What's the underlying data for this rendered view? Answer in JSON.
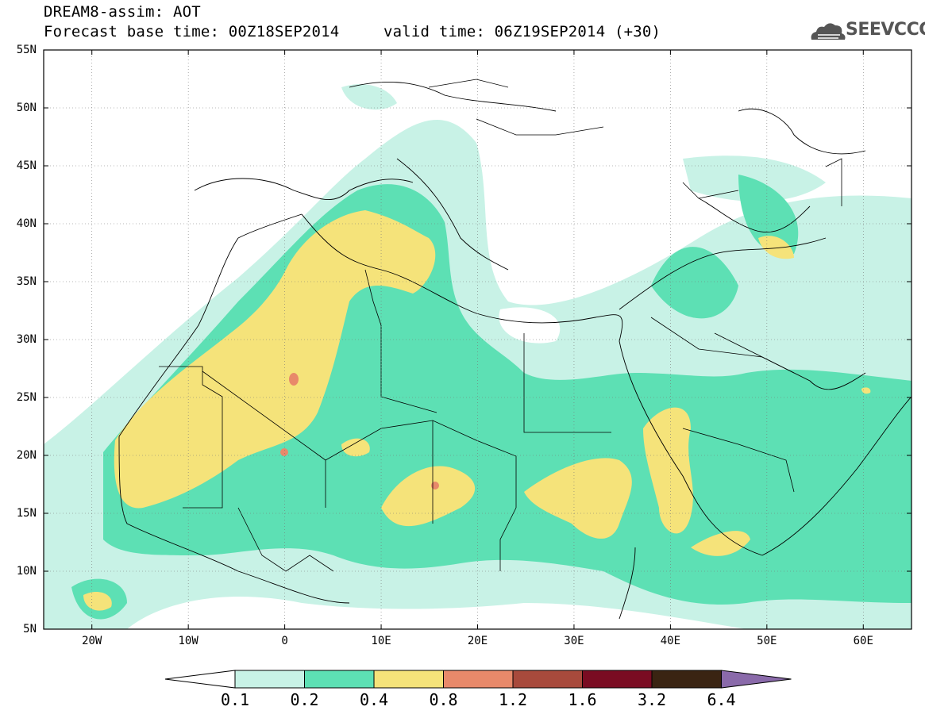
{
  "title": {
    "line1": "DREAM8-assim: AOT",
    "base_time": "Forecast base time: 00Z18SEP2014",
    "valid_time": "valid time: 06Z19SEP2014 (+30)"
  },
  "logo": {
    "text": "SEEVCCC",
    "icon": "cloud-icon"
  },
  "map": {
    "lon_range": [
      -25,
      65
    ],
    "lat_range": [
      5,
      55
    ],
    "lat_ticks": [
      {
        "v": 55,
        "label": "55N"
      },
      {
        "v": 50,
        "label": "50N"
      },
      {
        "v": 45,
        "label": "45N"
      },
      {
        "v": 40,
        "label": "40N"
      },
      {
        "v": 35,
        "label": "35N"
      },
      {
        "v": 30,
        "label": "30N"
      },
      {
        "v": 25,
        "label": "25N"
      },
      {
        "v": 20,
        "label": "20N"
      },
      {
        "v": 15,
        "label": "15N"
      },
      {
        "v": 10,
        "label": "10N"
      },
      {
        "v": 5,
        "label": "5N"
      }
    ],
    "lon_ticks": [
      {
        "v": -20,
        "label": "20W"
      },
      {
        "v": -10,
        "label": "10W"
      },
      {
        "v": 0,
        "label": "0"
      },
      {
        "v": 10,
        "label": "10E"
      },
      {
        "v": 20,
        "label": "20E"
      },
      {
        "v": 30,
        "label": "30E"
      },
      {
        "v": 40,
        "label": "40E"
      },
      {
        "v": 50,
        "label": "50E"
      },
      {
        "v": 60,
        "label": "60E"
      }
    ],
    "grid": true
  },
  "colorbar": {
    "labels": [
      "0.1",
      "0.2",
      "0.4",
      "0.8",
      "1.2",
      "1.6",
      "3.2",
      "6.4"
    ],
    "colors": [
      "#ffffff",
      "#c8f2e6",
      "#5de0b4",
      "#f5e37a",
      "#e8896a",
      "#a84a3c",
      "#7a0c22",
      "#3a2412",
      "#8a6aaa"
    ]
  }
}
